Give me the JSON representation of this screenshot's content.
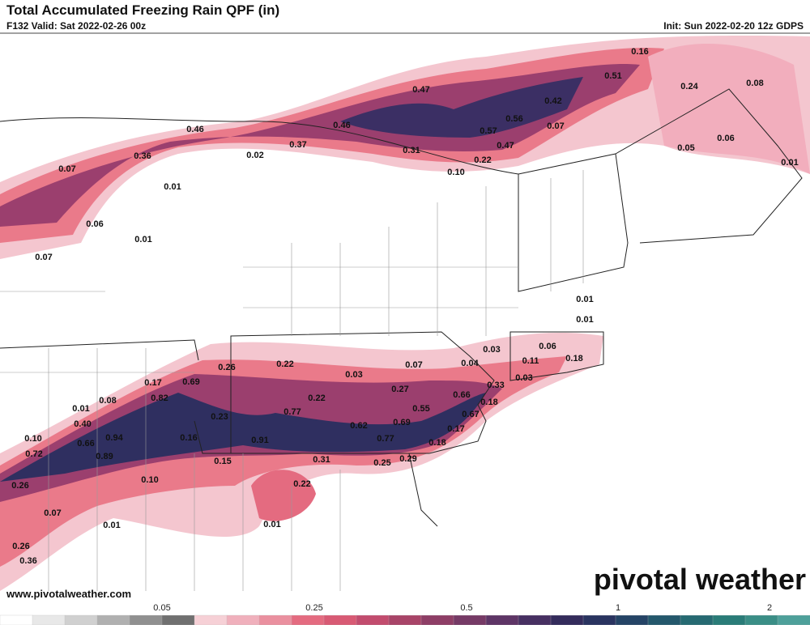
{
  "header": {
    "title": "Total Accumulated Freezing Rain QPF (in)",
    "valid": "F132 Valid: Sat 2022-02-26 00z",
    "init": "Init: Sun 2022-02-20 12z GDPS"
  },
  "labels": [
    "0.16",
    "0.51",
    "0.24",
    "0.08",
    "0.47",
    "0.42",
    "0.56",
    "0.46",
    "0.46",
    "0.57",
    "0.07",
    "0.37",
    "0.31",
    "0.47",
    "0.05",
    "0.06",
    "0.36",
    "0.02",
    "0.22",
    "0.10",
    "0.01",
    "0.07",
    "0.01",
    "0.06",
    "0.01",
    "0.07",
    "0.01",
    "0.01",
    "0.03",
    "0.06",
    "0.11",
    "0.18",
    "0.26",
    "0.22",
    "0.03",
    "0.07",
    "0.04",
    "0.17",
    "0.69",
    "0.33",
    "0.03",
    "0.27",
    "0.08",
    "0.82",
    "0.22",
    "0.66",
    "0.18",
    "0.01",
    "0.23",
    "0.77",
    "0.55",
    "0.67",
    "0.40",
    "0.62",
    "0.69",
    "0.17",
    "0.10",
    "0.94",
    "0.16",
    "0.91",
    "0.77",
    "0.18",
    "0.66",
    "0.72",
    "0.89",
    "0.15",
    "0.31",
    "0.25",
    "0.29",
    "0.26",
    "0.10",
    "0.22",
    "0.07",
    "0.01",
    "0.01",
    "0.26",
    "0.36"
  ],
  "footer": {
    "url": "www.pivotalweather.com",
    "logo": "pivotal weather"
  },
  "colorbar": {
    "ticks": [
      "0.05",
      "0.25",
      "0.5",
      "1",
      "2"
    ]
  }
}
